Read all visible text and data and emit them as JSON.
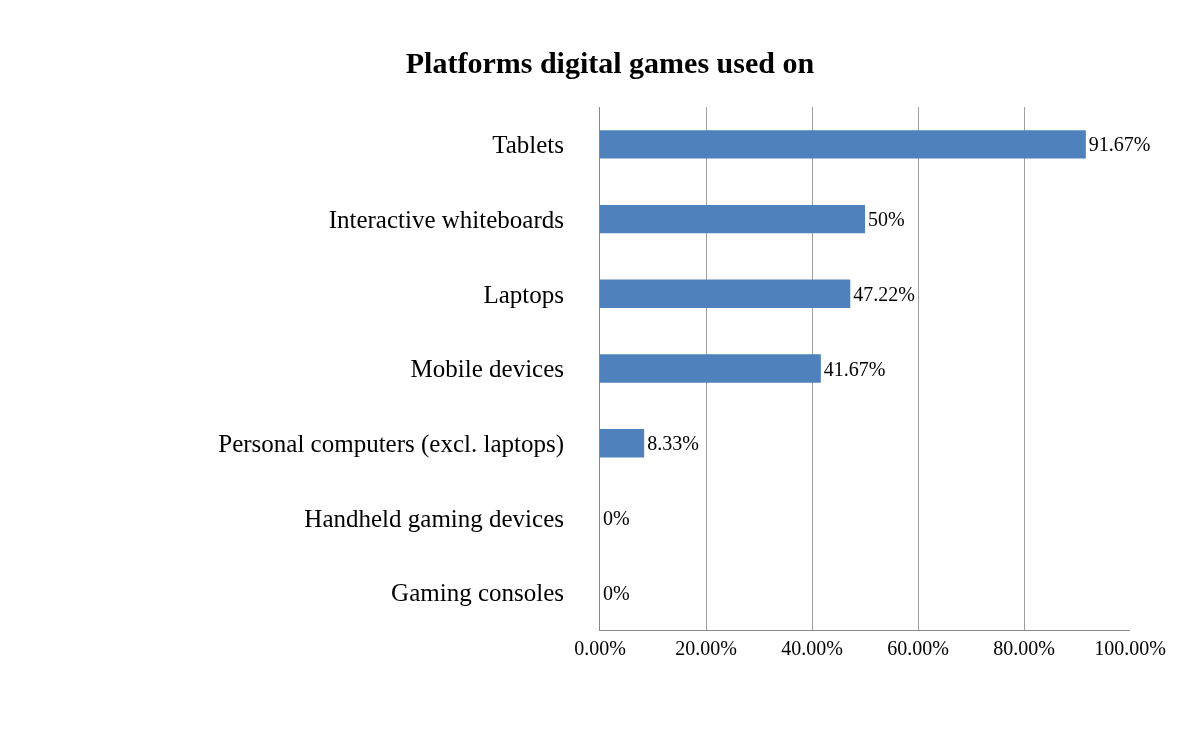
{
  "chart_data": {
    "type": "bar",
    "orientation": "horizontal",
    "title": "Platforms digital games used on",
    "categories": [
      "Tablets",
      "Interactive whiteboards",
      "Laptops",
      "Mobile devices",
      "Personal computers (excl. laptops)",
      "Handheld gaming devices",
      "Gaming consoles"
    ],
    "values": [
      91.67,
      50,
      47.22,
      41.67,
      8.33,
      0,
      0
    ],
    "value_labels": [
      "91.67%",
      "50%",
      "47.22%",
      "41.67%",
      "8.33%",
      "0%",
      "0%"
    ],
    "color": "#4f81bd",
    "xlim": [
      0,
      100
    ],
    "xticks": [
      {
        "value": 0,
        "label": "0.00%"
      },
      {
        "value": 20,
        "label": "20.00%"
      },
      {
        "value": 40,
        "label": "40.00%"
      },
      {
        "value": 60,
        "label": "60.00%"
      },
      {
        "value": 80,
        "label": "80.00%"
      },
      {
        "value": 100,
        "label": "100.00%"
      }
    ],
    "grid": "x"
  }
}
